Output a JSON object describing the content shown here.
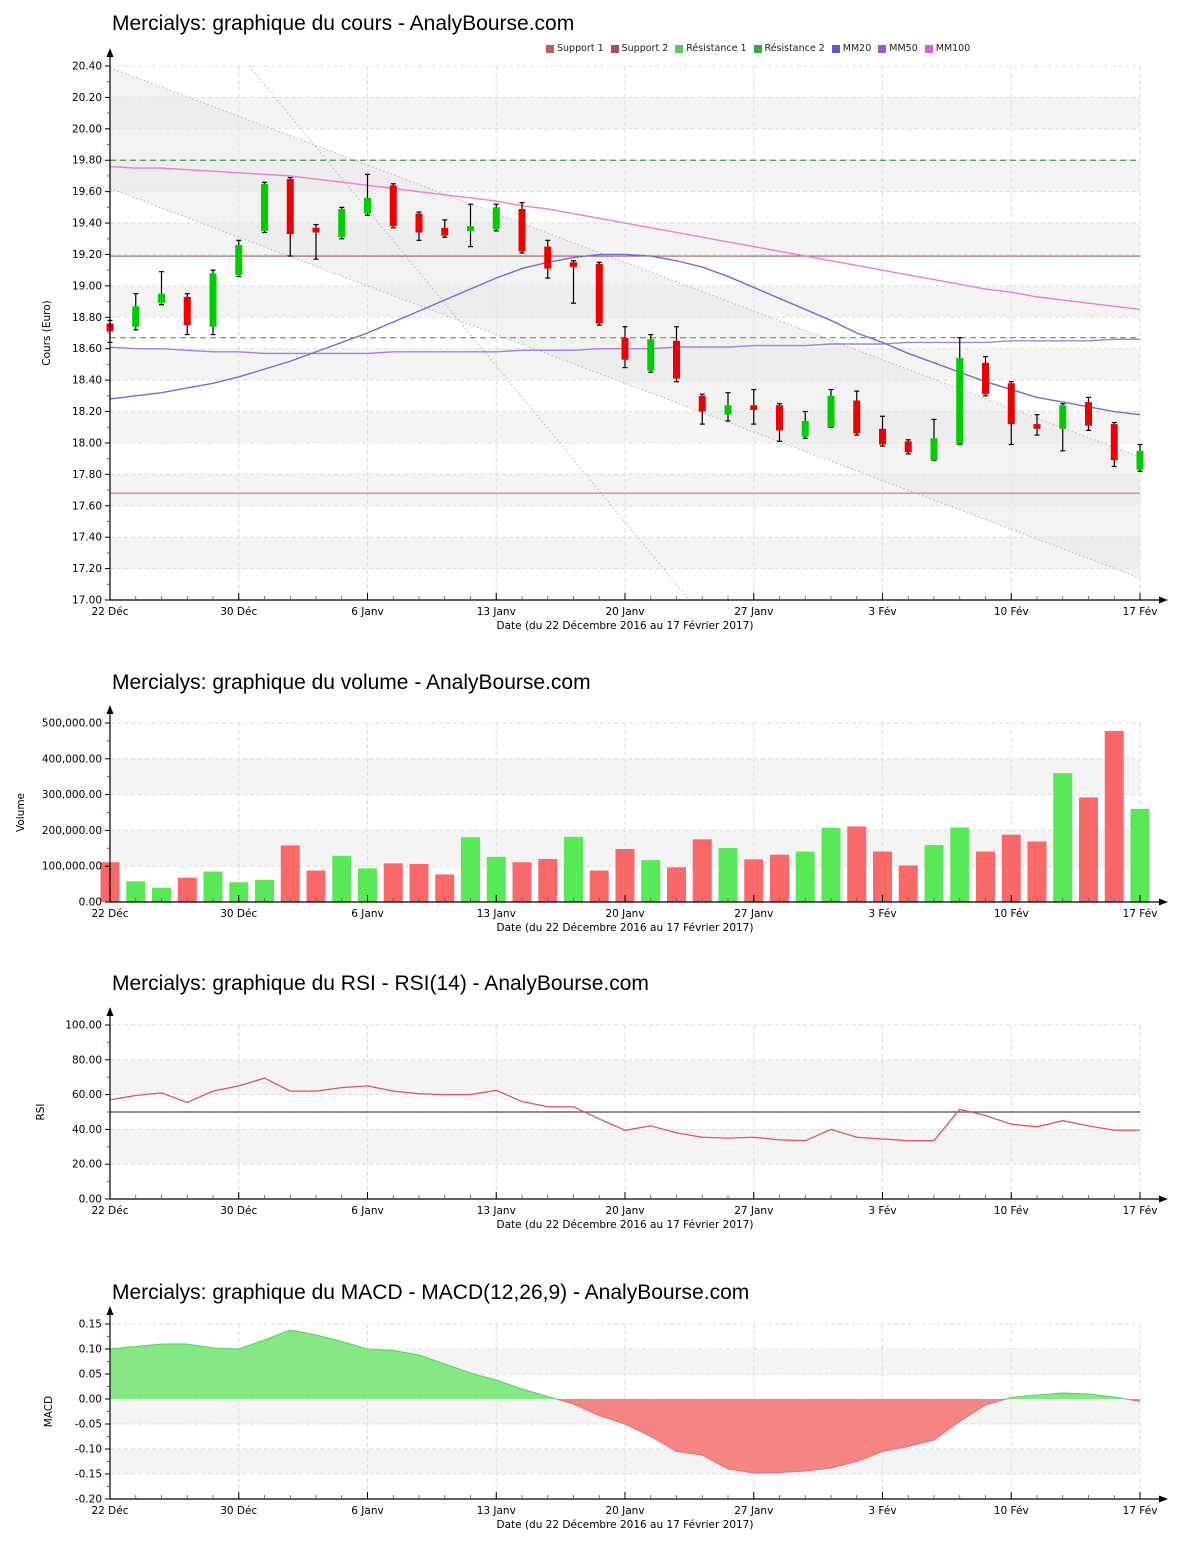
{
  "axis_shared": {
    "xlabel": "Date (du 22 Décembre 2016 au 17 Février 2017)",
    "x_ticks": [
      {
        "label": "22 Déc",
        "i": 0
      },
      {
        "label": "30 Déc",
        "i": 5
      },
      {
        "label": "6 Janv",
        "i": 10
      },
      {
        "label": "13 Janv",
        "i": 15
      },
      {
        "label": "20 Janv",
        "i": 20
      },
      {
        "label": "27 Janv",
        "i": 25
      },
      {
        "label": "3 Fév",
        "i": 30
      },
      {
        "label": "10 Fév",
        "i": 35
      },
      {
        "label": "17 Fév",
        "i": 40
      }
    ],
    "n_points": 41
  },
  "colors": {
    "candle_up": "#00cc00",
    "candle_down": "#ee0000",
    "wick": "#000000",
    "vol_up": "#58e858",
    "vol_down": "#f96969",
    "mm20": "#6e6ee0",
    "mm50": "#a97ce8",
    "mm100": "#f07ae0",
    "support1": "#a85454",
    "support2": "#cd7575",
    "resistance1": "#4aa84a",
    "resistance2": "#3d9e3d",
    "rsi_line": "#e45555",
    "rsi_mid": "#666666",
    "macd_pos_fill": "#85e885",
    "macd_pos_edge": "#5ad05a",
    "macd_neg_fill": "#f58484",
    "macd_neg_edge": "#ee7070",
    "stripe": "#f4f4f4",
    "grid": "#dcdcdc",
    "minor_tick_red": "#cc3333",
    "channel_fill": "#e8e8e8",
    "channel_dot": "#b3b3b3",
    "axis": "#000000"
  },
  "chart_data": [
    {
      "id": "cours",
      "type": "candlestick",
      "title": "Mercialys: graphique du cours - AnalyBourse.com",
      "ylabel": "Cours (Euro)",
      "ylim": [
        17.0,
        20.4
      ],
      "ystep": 0.2,
      "y_tick_labels": [
        "17.00",
        "17.20",
        "17.40",
        "17.60",
        "17.80",
        "18.00",
        "18.20",
        "18.40",
        "18.60",
        "18.80",
        "19.00",
        "19.20",
        "19.40",
        "19.60",
        "19.80",
        "20.00",
        "20.20",
        "20.40"
      ],
      "legend": [
        {
          "label": "Support 1",
          "color": "#c05c5c"
        },
        {
          "label": "Support 2",
          "color": "#aa4e4e"
        },
        {
          "label": "Résistance 1",
          "color": "#5dc85d"
        },
        {
          "label": "Résistance 2",
          "color": "#3da83d"
        },
        {
          "label": "MM20",
          "color": "#5a5ae0"
        },
        {
          "label": "MM50",
          "color": "#9a5ae0"
        },
        {
          "label": "MM100",
          "color": "#e05ae0"
        }
      ],
      "levels": {
        "support1": 19.19,
        "support2": 17.68,
        "resistance1": 18.67,
        "resistance2": 19.8
      },
      "channel": {
        "upper_start": 20.39,
        "upper_end": 17.91,
        "lower_start": 19.62,
        "lower_end": 17.14
      },
      "steep_line": {
        "start_index": 5.4,
        "start_price": 20.4,
        "end_index": 22.5,
        "end_price": 17.0
      },
      "candles": [
        [
          18.76,
          18.78,
          18.64,
          18.71
        ],
        [
          18.74,
          18.95,
          18.72,
          18.87
        ],
        [
          18.89,
          19.09,
          18.88,
          18.95
        ],
        [
          18.93,
          18.95,
          18.69,
          18.75
        ],
        [
          18.74,
          19.1,
          18.69,
          19.08
        ],
        [
          19.07,
          19.29,
          19.06,
          19.26
        ],
        [
          19.35,
          19.66,
          19.34,
          19.65
        ],
        [
          19.68,
          19.69,
          19.19,
          19.33
        ],
        [
          19.37,
          19.39,
          19.17,
          19.34
        ],
        [
          19.31,
          19.5,
          19.3,
          19.49
        ],
        [
          19.46,
          19.71,
          19.45,
          19.56
        ],
        [
          19.64,
          19.65,
          19.37,
          19.38
        ],
        [
          19.46,
          19.47,
          19.29,
          19.34
        ],
        [
          19.37,
          19.42,
          19.31,
          19.32
        ],
        [
          19.35,
          19.52,
          19.25,
          19.38
        ],
        [
          19.36,
          19.52,
          19.35,
          19.5
        ],
        [
          19.49,
          19.53,
          19.21,
          19.22
        ],
        [
          19.25,
          19.29,
          19.05,
          19.11
        ],
        [
          19.15,
          19.16,
          18.89,
          19.12
        ],
        [
          19.14,
          19.15,
          18.75,
          18.76
        ],
        [
          18.67,
          18.74,
          18.48,
          18.53
        ],
        [
          18.46,
          18.69,
          18.45,
          18.66
        ],
        [
          18.65,
          18.74,
          18.39,
          18.41
        ],
        [
          18.3,
          18.31,
          18.12,
          18.2
        ],
        [
          18.18,
          18.32,
          18.14,
          18.24
        ],
        [
          18.24,
          18.34,
          18.12,
          18.21
        ],
        [
          18.24,
          18.25,
          18.01,
          18.08
        ],
        [
          18.04,
          18.2,
          18.03,
          18.14
        ],
        [
          18.1,
          18.34,
          18.1,
          18.3
        ],
        [
          18.27,
          18.33,
          18.05,
          18.06
        ],
        [
          18.09,
          18.17,
          17.98,
          17.99
        ],
        [
          18.01,
          18.02,
          17.93,
          17.94
        ],
        [
          17.89,
          18.15,
          17.89,
          18.03
        ],
        [
          17.99,
          18.67,
          17.99,
          18.54
        ],
        [
          18.51,
          18.55,
          18.3,
          18.31
        ],
        [
          18.38,
          18.39,
          17.99,
          18.12
        ],
        [
          18.12,
          18.18,
          18.05,
          18.09
        ],
        [
          18.09,
          18.25,
          17.95,
          18.24
        ],
        [
          18.26,
          18.29,
          18.08,
          18.11
        ],
        [
          18.12,
          18.13,
          17.85,
          17.89
        ],
        [
          17.83,
          17.99,
          17.82,
          17.95
        ]
      ],
      "mm20": [
        18.28,
        18.3,
        18.32,
        18.35,
        18.38,
        18.42,
        18.47,
        18.52,
        18.58,
        18.64,
        18.7,
        18.77,
        18.84,
        18.91,
        18.98,
        19.05,
        19.11,
        19.15,
        19.18,
        19.2,
        19.2,
        19.19,
        19.16,
        19.12,
        19.06,
        18.99,
        18.92,
        18.85,
        18.78,
        18.7,
        18.64,
        18.57,
        18.51,
        18.45,
        18.39,
        18.34,
        18.29,
        18.26,
        18.23,
        18.2,
        18.18
      ],
      "mm50": [
        18.61,
        18.6,
        18.6,
        18.59,
        18.58,
        18.58,
        18.57,
        18.57,
        18.57,
        18.57,
        18.57,
        18.58,
        18.58,
        18.58,
        18.58,
        18.58,
        18.59,
        18.59,
        18.59,
        18.6,
        18.6,
        18.6,
        18.61,
        18.61,
        18.61,
        18.62,
        18.62,
        18.62,
        18.63,
        18.63,
        18.63,
        18.64,
        18.64,
        18.64,
        18.64,
        18.65,
        18.65,
        18.65,
        18.65,
        18.66,
        18.66
      ],
      "mm100": [
        19.76,
        19.75,
        19.75,
        19.74,
        19.73,
        19.72,
        19.71,
        19.7,
        19.68,
        19.66,
        19.64,
        19.62,
        19.6,
        19.58,
        19.56,
        19.54,
        19.51,
        19.49,
        19.46,
        19.43,
        19.4,
        19.37,
        19.34,
        19.31,
        19.28,
        19.25,
        19.22,
        19.19,
        19.16,
        19.13,
        19.1,
        19.07,
        19.04,
        19.01,
        18.98,
        18.96,
        18.93,
        18.91,
        18.89,
        18.87,
        18.85
      ]
    },
    {
      "id": "volume",
      "type": "bar",
      "title": "Mercialys: graphique du volume - AnalyBourse.com",
      "ylabel": "Volume",
      "ylim": [
        0,
        500000
      ],
      "ystep": 100000,
      "y_tick_labels": [
        "0.00",
        "100,000.00",
        "200,000.00",
        "300,000.00",
        "400,000.00",
        "500,000.00"
      ],
      "values": [
        111000,
        58000,
        40000,
        68000,
        85000,
        55000,
        62000,
        158000,
        88000,
        129000,
        94000,
        108000,
        106000,
        77000,
        181000,
        126000,
        111000,
        120000,
        182000,
        88000,
        148000,
        117000,
        97000,
        175000,
        151000,
        119000,
        132000,
        141000,
        207000,
        211000,
        141000,
        102000,
        159000,
        208000,
        141000,
        188000,
        169000,
        360000,
        292000,
        478000,
        260000
      ],
      "directions": [
        "down",
        "up",
        "up",
        "down",
        "up",
        "up",
        "up",
        "down",
        "down",
        "up",
        "up",
        "down",
        "down",
        "down",
        "up",
        "up",
        "down",
        "down",
        "up",
        "down",
        "down",
        "up",
        "down",
        "down",
        "up",
        "down",
        "down",
        "up",
        "up",
        "down",
        "down",
        "down",
        "up",
        "up",
        "down",
        "down",
        "down",
        "up",
        "down",
        "down",
        "up"
      ]
    },
    {
      "id": "rsi",
      "type": "line",
      "title": "Mercialys: graphique du RSI - RSI(14) - AnalyBourse.com",
      "ylabel": "RSI",
      "ylim": [
        0,
        100
      ],
      "ystep": 20,
      "y_tick_labels": [
        "0.00",
        "20.00",
        "40.00",
        "60.00",
        "80.00",
        "100.00"
      ],
      "midline": 50,
      "values": [
        57,
        59.5,
        61,
        55.5,
        62,
        65,
        69.5,
        62,
        62,
        64,
        65,
        62,
        60.5,
        60,
        60,
        62.5,
        56,
        53,
        53,
        46,
        39.5,
        42,
        38,
        35.5,
        35,
        35.5,
        34,
        33.5,
        40,
        35.5,
        34.5,
        33.5,
        33.5,
        51.5,
        48,
        43,
        41.5,
        45,
        42,
        39.5,
        39.5
      ]
    },
    {
      "id": "macd",
      "type": "area",
      "title": "Mercialys: graphique du MACD - MACD(12,26,9) - AnalyBourse.com",
      "ylabel": "MACD",
      "ylim": [
        -0.2,
        0.15
      ],
      "ystep": 0.05,
      "y_tick_labels": [
        "-0.20",
        "-0.15",
        "-0.10",
        "-0.05",
        "0.00",
        "0.05",
        "0.10",
        "0.15"
      ],
      "values": [
        0.1,
        0.105,
        0.11,
        0.11,
        0.102,
        0.1,
        0.118,
        0.138,
        0.128,
        0.115,
        0.1,
        0.097,
        0.088,
        0.07,
        0.052,
        0.038,
        0.02,
        0.005,
        -0.01,
        -0.033,
        -0.05,
        -0.075,
        -0.105,
        -0.112,
        -0.14,
        -0.148,
        -0.147,
        -0.144,
        -0.138,
        -0.125,
        -0.105,
        -0.095,
        -0.082,
        -0.045,
        -0.012,
        0.003,
        0.008,
        0.012,
        0.01,
        0.004,
        -0.005
      ]
    }
  ]
}
